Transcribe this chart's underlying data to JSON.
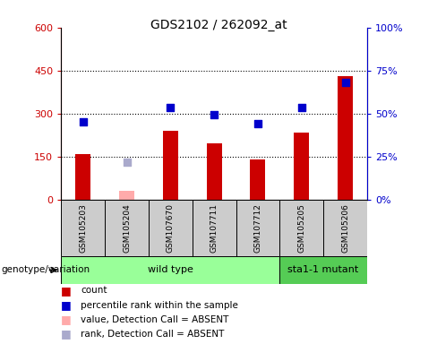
{
  "title": "GDS2102 / 262092_at",
  "sample_labels": [
    "GSM105203",
    "GSM105204",
    "GSM107670",
    "GSM107711",
    "GSM107712",
    "GSM105205",
    "GSM105206"
  ],
  "count_values": [
    160,
    null,
    240,
    195,
    140,
    235,
    430
  ],
  "count_absent": [
    null,
    30,
    null,
    null,
    null,
    null,
    null
  ],
  "percentile_values": [
    270,
    null,
    320,
    295,
    265,
    320,
    410
  ],
  "percentile_absent": [
    null,
    130,
    null,
    null,
    null,
    null,
    null
  ],
  "bar_color": "#cc0000",
  "bar_absent_color": "#ffaaaa",
  "dot_color": "#0000cc",
  "dot_absent_color": "#aaaacc",
  "ylim_left": [
    0,
    600
  ],
  "ylim_right": [
    0,
    100
  ],
  "yticks_left": [
    0,
    150,
    300,
    450,
    600
  ],
  "ytick_labels_left": [
    "0",
    "150",
    "300",
    "450",
    "600"
  ],
  "ytick_labels_right": [
    "0%",
    "25%",
    "50%",
    "75%",
    "100%"
  ],
  "wt_color": "#99ff99",
  "mut_color": "#55cc55",
  "sample_box_color": "#cccccc",
  "genotype_label": "genotype/variation",
  "legend_items": [
    {
      "label": "count",
      "color": "#cc0000"
    },
    {
      "label": "percentile rank within the sample",
      "color": "#0000cc"
    },
    {
      "label": "value, Detection Call = ABSENT",
      "color": "#ffaaaa"
    },
    {
      "label": "rank, Detection Call = ABSENT",
      "color": "#aaaacc"
    }
  ],
  "bar_width": 0.35,
  "dot_size": 35
}
